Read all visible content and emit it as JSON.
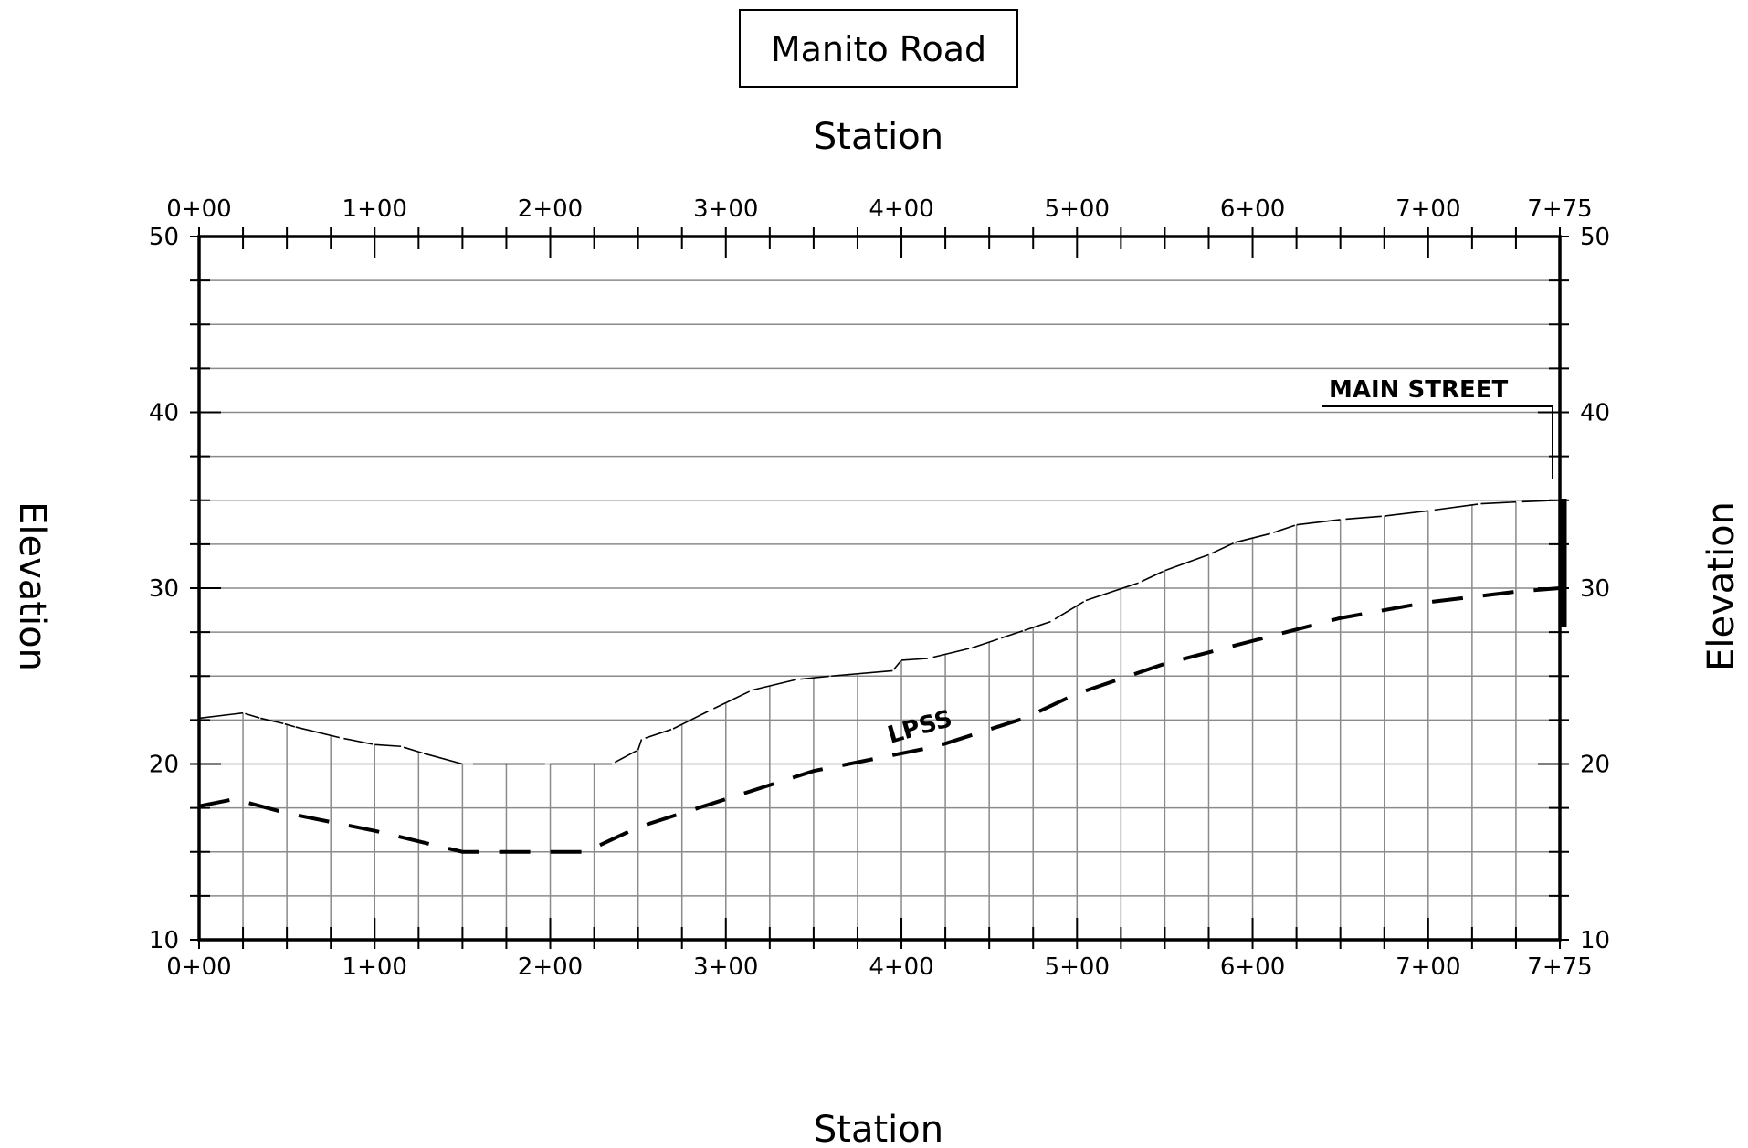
{
  "chart_data": {
    "type": "line",
    "title": "Manito Road",
    "xlabel": "Station",
    "ylabel": "Elevation",
    "xlim": [
      0,
      775
    ],
    "ylim": [
      10,
      50
    ],
    "x_tick_labels": [
      "0+00",
      "1+00",
      "2+00",
      "3+00",
      "4+00",
      "5+00",
      "6+00",
      "7+00",
      "7+75"
    ],
    "x_tick_values": [
      0,
      100,
      200,
      300,
      400,
      500,
      600,
      700,
      775
    ],
    "y_tick_labels": [
      "10",
      "20",
      "30",
      "40",
      "50"
    ],
    "y_tick_values": [
      10,
      20,
      30,
      40,
      50
    ],
    "grid": true,
    "series": [
      {
        "style": "thin-solid",
        "points": [
          [
            0,
            22.6
          ],
          [
            25,
            22.9
          ],
          [
            35,
            22.6
          ],
          [
            48,
            22.3
          ],
          [
            55,
            22.1
          ],
          [
            80,
            21.5
          ],
          [
            100,
            21.1
          ],
          [
            115,
            21.0
          ],
          [
            128,
            20.6
          ],
          [
            150,
            20.0
          ],
          [
            200,
            20.0
          ],
          [
            235,
            20.0
          ],
          [
            250,
            20.8
          ],
          [
            252,
            21.4
          ],
          [
            270,
            22.0
          ],
          [
            290,
            23.0
          ],
          [
            315,
            24.2
          ],
          [
            340,
            24.8
          ],
          [
            360,
            25.0
          ],
          [
            395,
            25.3
          ],
          [
            400,
            25.9
          ],
          [
            415,
            26.0
          ],
          [
            440,
            26.6
          ],
          [
            455,
            27.1
          ],
          [
            470,
            27.6
          ],
          [
            485,
            28.1
          ],
          [
            505,
            29.3
          ],
          [
            535,
            30.3
          ],
          [
            550,
            31.0
          ],
          [
            575,
            31.9
          ],
          [
            590,
            32.6
          ],
          [
            610,
            33.1
          ],
          [
            625,
            33.6
          ],
          [
            650,
            33.9
          ],
          [
            675,
            34.1
          ],
          [
            700,
            34.4
          ],
          [
            730,
            34.8
          ],
          [
            750,
            34.9
          ],
          [
            775,
            35.0
          ]
        ]
      },
      {
        "name": "LPSS",
        "style": "dashed",
        "points": [
          [
            0,
            17.6
          ],
          [
            20,
            18.0
          ],
          [
            50,
            17.2
          ],
          [
            100,
            16.2
          ],
          [
            150,
            15.0
          ],
          [
            200,
            15.0
          ],
          [
            220,
            15.0
          ],
          [
            250,
            16.4
          ],
          [
            300,
            18.0
          ],
          [
            350,
            19.6
          ],
          [
            400,
            20.6
          ],
          [
            420,
            21.0
          ],
          [
            470,
            22.6
          ],
          [
            500,
            24.0
          ],
          [
            550,
            25.7
          ],
          [
            600,
            27.0
          ],
          [
            650,
            28.3
          ],
          [
            700,
            29.2
          ],
          [
            750,
            29.8
          ],
          [
            775,
            30.0
          ]
        ]
      }
    ],
    "annotations": [
      {
        "text": "LPSS",
        "x": 410,
        "y": 21.8
      },
      {
        "text": "MAIN STREET",
        "x": 690,
        "y": 41.5
      }
    ]
  }
}
